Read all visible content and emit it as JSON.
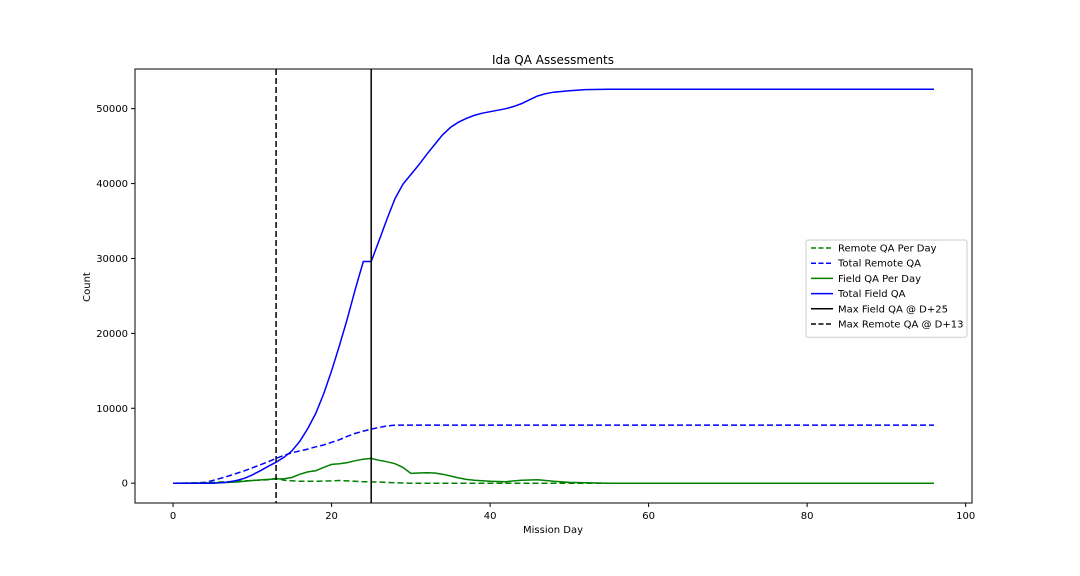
{
  "chart_data": {
    "type": "line",
    "title": "Ida QA Assessments",
    "xlabel": "Mission Day",
    "ylabel": "Count",
    "xlim": [
      -4.8,
      100.8
    ],
    "ylim": [
      -2650,
      55300
    ],
    "xticks": [
      0,
      20,
      40,
      60,
      80,
      100
    ],
    "yticks": [
      0,
      10000,
      20000,
      30000,
      40000,
      50000
    ],
    "grid": false,
    "legend_position": "center-right",
    "series": [
      {
        "name": "Remote QA Per Day",
        "color": "#008000",
        "style": "dashed",
        "points": [
          [
            0,
            0
          ],
          [
            4,
            50
          ],
          [
            6,
            150
          ],
          [
            8,
            250
          ],
          [
            10,
            350
          ],
          [
            12,
            450
          ],
          [
            13,
            650
          ],
          [
            14,
            400
          ],
          [
            16,
            250
          ],
          [
            18,
            250
          ],
          [
            20,
            300
          ],
          [
            21,
            350
          ],
          [
            22,
            300
          ],
          [
            24,
            200
          ],
          [
            26,
            150
          ],
          [
            28,
            50
          ],
          [
            30,
            0
          ],
          [
            40,
            0
          ],
          [
            60,
            0
          ],
          [
            80,
            0
          ],
          [
            96,
            0
          ]
        ]
      },
      {
        "name": "Total Remote QA",
        "color": "#0000ff",
        "style": "dashed",
        "points": [
          [
            0,
            0
          ],
          [
            2,
            0
          ],
          [
            4,
            100
          ],
          [
            5,
            350
          ],
          [
            6,
            650
          ],
          [
            7,
            950
          ],
          [
            8,
            1300
          ],
          [
            9,
            1650
          ],
          [
            10,
            2050
          ],
          [
            11,
            2450
          ],
          [
            12,
            2850
          ],
          [
            13,
            3300
          ],
          [
            14,
            3700
          ],
          [
            15,
            4050
          ],
          [
            16,
            4300
          ],
          [
            17,
            4550
          ],
          [
            18,
            4850
          ],
          [
            19,
            5100
          ],
          [
            20,
            5450
          ],
          [
            21,
            5800
          ],
          [
            22,
            6250
          ],
          [
            23,
            6650
          ],
          [
            24,
            6950
          ],
          [
            25,
            7200
          ],
          [
            26,
            7450
          ],
          [
            27,
            7650
          ],
          [
            28,
            7750
          ],
          [
            30,
            7750
          ],
          [
            40,
            7750
          ],
          [
            60,
            7750
          ],
          [
            80,
            7750
          ],
          [
            96,
            7750
          ]
        ]
      },
      {
        "name": "Field QA Per Day",
        "color": "#008000",
        "style": "solid",
        "points": [
          [
            0,
            0
          ],
          [
            6,
            50
          ],
          [
            8,
            150
          ],
          [
            10,
            350
          ],
          [
            12,
            500
          ],
          [
            13,
            550
          ],
          [
            14,
            600
          ],
          [
            15,
            750
          ],
          [
            16,
            1200
          ],
          [
            17,
            1500
          ],
          [
            18,
            1650
          ],
          [
            19,
            2100
          ],
          [
            20,
            2500
          ],
          [
            21,
            2600
          ],
          [
            22,
            2750
          ],
          [
            23,
            3000
          ],
          [
            24,
            3200
          ],
          [
            25,
            3300
          ],
          [
            26,
            3050
          ],
          [
            27,
            2850
          ],
          [
            28,
            2600
          ],
          [
            29,
            2100
          ],
          [
            30,
            1300
          ],
          [
            31,
            1350
          ],
          [
            32,
            1400
          ],
          [
            33,
            1350
          ],
          [
            34,
            1200
          ],
          [
            35,
            950
          ],
          [
            36,
            700
          ],
          [
            37,
            500
          ],
          [
            38,
            400
          ],
          [
            40,
            250
          ],
          [
            42,
            200
          ],
          [
            43,
            300
          ],
          [
            44,
            400
          ],
          [
            46,
            450
          ],
          [
            47,
            350
          ],
          [
            48,
            250
          ],
          [
            50,
            100
          ],
          [
            52,
            50
          ],
          [
            55,
            0
          ],
          [
            60,
            0
          ],
          [
            80,
            0
          ],
          [
            96,
            0
          ]
        ]
      },
      {
        "name": "Total Field QA",
        "color": "#0000ff",
        "style": "solid",
        "points": [
          [
            0,
            0
          ],
          [
            5,
            0
          ],
          [
            6,
            50
          ],
          [
            7,
            150
          ],
          [
            8,
            350
          ],
          [
            9,
            650
          ],
          [
            10,
            1100
          ],
          [
            11,
            1650
          ],
          [
            12,
            2250
          ],
          [
            13,
            2800
          ],
          [
            14,
            3450
          ],
          [
            15,
            4300
          ],
          [
            16,
            5600
          ],
          [
            17,
            7300
          ],
          [
            18,
            9300
          ],
          [
            19,
            11900
          ],
          [
            20,
            15000
          ],
          [
            21,
            18400
          ],
          [
            22,
            22000
          ],
          [
            23,
            25900
          ],
          [
            24,
            29600
          ],
          [
            25,
            29600
          ],
          [
            26,
            32400
          ],
          [
            27,
            35300
          ],
          [
            28,
            38000
          ],
          [
            29,
            39900
          ],
          [
            30,
            41200
          ],
          [
            31,
            42500
          ],
          [
            32,
            43900
          ],
          [
            33,
            45200
          ],
          [
            34,
            46500
          ],
          [
            35,
            47500
          ],
          [
            36,
            48200
          ],
          [
            37,
            48700
          ],
          [
            38,
            49100
          ],
          [
            39,
            49400
          ],
          [
            40,
            49600
          ],
          [
            41,
            49800
          ],
          [
            42,
            50000
          ],
          [
            43,
            50300
          ],
          [
            44,
            50700
          ],
          [
            45,
            51200
          ],
          [
            46,
            51700
          ],
          [
            47,
            52000
          ],
          [
            48,
            52200
          ],
          [
            49,
            52300
          ],
          [
            50,
            52400
          ],
          [
            52,
            52550
          ],
          [
            55,
            52600
          ],
          [
            60,
            52600
          ],
          [
            80,
            52600
          ],
          [
            96,
            52600
          ]
        ]
      }
    ],
    "vlines": [
      {
        "name": "Max Field QA @ D+25",
        "x": 25,
        "color": "#000000",
        "style": "solid"
      },
      {
        "name": "Max Remote QA @ D+13",
        "x": 13,
        "color": "#000000",
        "style": "dashed"
      }
    ]
  }
}
